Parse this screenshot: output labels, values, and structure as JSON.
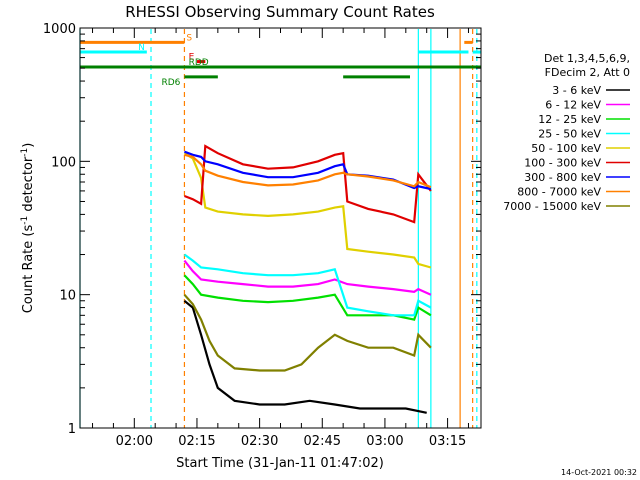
{
  "chart_data": {
    "type": "line",
    "title": "RHESSI Observing Summary Count Rates",
    "xlabel": "Start Time (31-Jan-11 01:47:02)",
    "ylabel_main": "Count Rate (s",
    "ylabel_sup1": "-1",
    "ylabel_mid": " detector",
    "ylabel_sup2": "-1",
    "ylabel_end": ")",
    "yscale": "log",
    "ylim": [
      1,
      1000
    ],
    "xlim": [
      "01:47",
      "03:23"
    ],
    "x_ticks": [
      "02:00",
      "02:15",
      "02:30",
      "02:45",
      "03:00",
      "03:15"
    ],
    "y_ticks": [
      "1",
      "10",
      "100",
      "1000"
    ],
    "timestamp": "14-Oct-2021 00:32",
    "legend_header": [
      "Det 1,3,4,5,6,9,",
      "FDecim 2, Att 0"
    ],
    "series": [
      {
        "name": "3 - 6 keV",
        "color": "#000000",
        "points": [
          [
            "02:12",
            9
          ],
          [
            "02:14",
            8
          ],
          [
            "02:16",
            5
          ],
          [
            "02:18",
            3
          ],
          [
            "02:20",
            2
          ],
          [
            "02:24",
            1.6
          ],
          [
            "02:30",
            1.5
          ],
          [
            "02:36",
            1.5
          ],
          [
            "02:42",
            1.6
          ],
          [
            "02:48",
            1.5
          ],
          [
            "02:54",
            1.4
          ],
          [
            "03:00",
            1.4
          ],
          [
            "03:05",
            1.4
          ],
          [
            "03:10",
            1.3
          ]
        ]
      },
      {
        "name": "6 - 12 keV",
        "color": "#ff00ff",
        "points": [
          [
            "02:12",
            18
          ],
          [
            "02:14",
            15
          ],
          [
            "02:16",
            13
          ],
          [
            "02:20",
            12.5
          ],
          [
            "02:26",
            12
          ],
          [
            "02:32",
            11.5
          ],
          [
            "02:38",
            11.5
          ],
          [
            "02:44",
            12
          ],
          [
            "02:48",
            13
          ],
          [
            "02:51",
            12
          ],
          [
            "02:56",
            11.5
          ],
          [
            "03:02",
            11
          ],
          [
            "03:07",
            10.5
          ],
          [
            "03:08",
            11
          ],
          [
            "03:11",
            10
          ]
        ]
      },
      {
        "name": "12 - 25 keV",
        "color": "#00e000",
        "points": [
          [
            "02:12",
            14
          ],
          [
            "02:14",
            12
          ],
          [
            "02:16",
            10
          ],
          [
            "02:20",
            9.5
          ],
          [
            "02:26",
            9
          ],
          [
            "02:32",
            8.8
          ],
          [
            "02:38",
            9
          ],
          [
            "02:44",
            9.5
          ],
          [
            "02:48",
            10
          ],
          [
            "02:51",
            7
          ],
          [
            "02:56",
            7
          ],
          [
            "03:02",
            7
          ],
          [
            "03:07",
            6.5
          ],
          [
            "03:08",
            8
          ],
          [
            "03:11",
            7
          ]
        ]
      },
      {
        "name": "25 - 50 keV",
        "color": "#00ffff",
        "points": [
          [
            "02:12",
            20
          ],
          [
            "02:14",
            18
          ],
          [
            "02:16",
            16
          ],
          [
            "02:20",
            15.5
          ],
          [
            "02:26",
            14.5
          ],
          [
            "02:32",
            14
          ],
          [
            "02:38",
            14
          ],
          [
            "02:44",
            14.5
          ],
          [
            "02:48",
            15.5
          ],
          [
            "02:51",
            8
          ],
          [
            "02:56",
            7.5
          ],
          [
            "03:02",
            7
          ],
          [
            "03:07",
            7
          ],
          [
            "03:08",
            9
          ],
          [
            "03:11",
            8
          ]
        ]
      },
      {
        "name": "50 - 100 keV",
        "color": "#e0d000",
        "points": [
          [
            "02:12",
            115
          ],
          [
            "02:14",
            105
          ],
          [
            "02:16",
            75
          ],
          [
            "02:17",
            45
          ],
          [
            "02:20",
            42
          ],
          [
            "02:26",
            40
          ],
          [
            "02:32",
            39
          ],
          [
            "02:38",
            40
          ],
          [
            "02:44",
            42
          ],
          [
            "02:48",
            45
          ],
          [
            "02:50",
            46
          ],
          [
            "02:51",
            22
          ],
          [
            "02:56",
            21
          ],
          [
            "03:02",
            20
          ],
          [
            "03:07",
            19
          ],
          [
            "03:08",
            17
          ],
          [
            "03:11",
            16
          ]
        ]
      },
      {
        "name": "100 - 300 keV",
        "color": "#e00000",
        "points": [
          [
            "02:12",
            55
          ],
          [
            "02:14",
            52
          ],
          [
            "02:16",
            48
          ],
          [
            "02:17",
            130
          ],
          [
            "02:20",
            115
          ],
          [
            "02:26",
            95
          ],
          [
            "02:32",
            88
          ],
          [
            "02:38",
            90
          ],
          [
            "02:44",
            100
          ],
          [
            "02:48",
            112
          ],
          [
            "02:50",
            115
          ],
          [
            "02:51",
            50
          ],
          [
            "02:56",
            44
          ],
          [
            "03:02",
            40
          ],
          [
            "03:07",
            35
          ],
          [
            "03:08",
            80
          ],
          [
            "03:11",
            60
          ]
        ]
      },
      {
        "name": "300 - 800 keV",
        "color": "#0000ff",
        "points": [
          [
            "02:12",
            118
          ],
          [
            "02:14",
            112
          ],
          [
            "02:16",
            108
          ],
          [
            "02:17",
            100
          ],
          [
            "02:20",
            95
          ],
          [
            "02:26",
            82
          ],
          [
            "02:32",
            76
          ],
          [
            "02:38",
            76
          ],
          [
            "02:44",
            82
          ],
          [
            "02:48",
            92
          ],
          [
            "02:50",
            95
          ],
          [
            "02:51",
            80
          ],
          [
            "02:56",
            78
          ],
          [
            "03:02",
            73
          ],
          [
            "03:07",
            63
          ],
          [
            "03:08",
            65
          ],
          [
            "03:11",
            62
          ]
        ]
      },
      {
        "name": "800 - 7000 keV",
        "color": "#ff8000",
        "points": [
          [
            "02:12",
            112
          ],
          [
            "02:14",
            108
          ],
          [
            "02:16",
            95
          ],
          [
            "02:17",
            85
          ],
          [
            "02:20",
            78
          ],
          [
            "02:26",
            70
          ],
          [
            "02:32",
            66
          ],
          [
            "02:38",
            67
          ],
          [
            "02:44",
            72
          ],
          [
            "02:48",
            80
          ],
          [
            "02:50",
            82
          ],
          [
            "02:51",
            80
          ],
          [
            "02:56",
            77
          ],
          [
            "03:02",
            72
          ],
          [
            "03:07",
            65
          ],
          [
            "03:08",
            70
          ],
          [
            "03:11",
            64
          ]
        ]
      },
      {
        "name": "7000 - 15000 keV",
        "color": "#808000",
        "points": [
          [
            "02:12",
            10
          ],
          [
            "02:14",
            8.5
          ],
          [
            "02:16",
            6.5
          ],
          [
            "02:18",
            4.5
          ],
          [
            "02:20",
            3.5
          ],
          [
            "02:24",
            2.8
          ],
          [
            "02:30",
            2.7
          ],
          [
            "02:36",
            2.7
          ],
          [
            "02:40",
            3
          ],
          [
            "02:44",
            4
          ],
          [
            "02:48",
            5
          ],
          [
            "02:51",
            4.5
          ],
          [
            "02:56",
            4
          ],
          [
            "03:02",
            4
          ],
          [
            "03:07",
            3.5
          ],
          [
            "03:08",
            5
          ],
          [
            "03:11",
            4
          ]
        ]
      }
    ],
    "flags": [
      {
        "name": "S",
        "color": "#ff8000",
        "level": 780,
        "intervals": [
          [
            "01:47",
            "02:12"
          ],
          [
            "03:19",
            "03:21"
          ]
        ]
      },
      {
        "name": "N",
        "color": "#00ffff",
        "level": 660,
        "intervals": [
          [
            "01:47",
            "02:03"
          ],
          [
            "03:08",
            "03:20"
          ],
          [
            "03:21",
            "03:23"
          ]
        ]
      },
      {
        "name": "E",
        "color": "#e00000",
        "level": 560,
        "intervals": [
          [
            "02:15",
            "02:17"
          ]
        ]
      },
      {
        "name": "RDD",
        "color": "#008000",
        "level": 510,
        "intervals": [
          [
            "01:47",
            "03:23"
          ]
        ]
      },
      {
        "name": "RD6",
        "color": "#008000",
        "level": 430,
        "intervals": [
          [
            "02:12",
            "02:20"
          ],
          [
            "02:50",
            "03:06"
          ]
        ]
      }
    ],
    "vlines": [
      {
        "x": "01:47",
        "color": "#00ffff",
        "style": "solid"
      },
      {
        "x": "02:04",
        "color": "#00ffff",
        "style": "dashed"
      },
      {
        "x": "02:12",
        "color": "#ff8000",
        "style": "dashed"
      },
      {
        "x": "03:08",
        "color": "#00ffff",
        "style": "solid"
      },
      {
        "x": "03:11",
        "color": "#00ffff",
        "style": "solid"
      },
      {
        "x": "03:18",
        "color": "#ff8000",
        "style": "solid"
      },
      {
        "x": "03:21",
        "color": "#ff8000",
        "style": "dashed"
      },
      {
        "x": "03:22",
        "color": "#00ffff",
        "style": "dashed"
      }
    ]
  }
}
